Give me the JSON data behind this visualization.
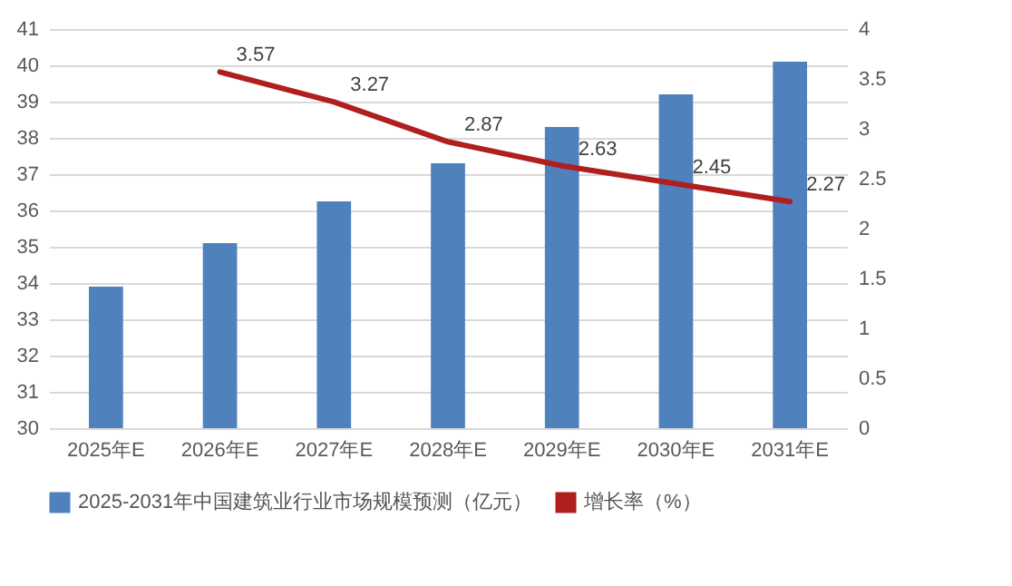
{
  "chart_data": {
    "type": "bar",
    "categories": [
      "2025年E",
      "2026年E",
      "2027年E",
      "2028年E",
      "2029年E",
      "2030年E",
      "2031年E"
    ],
    "series": [
      {
        "name": "2025-2031年中国建筑业行业市场规模预测（亿元）",
        "color": "#4f81bd",
        "values": [
          33.9,
          35.1,
          36.25,
          37.3,
          38.3,
          39.2,
          40.1
        ]
      },
      {
        "name": "增长率（%）",
        "type": "line",
        "axis": "y2",
        "color": "#b01e1e",
        "values": [
          null,
          3.57,
          3.27,
          2.87,
          2.63,
          2.45,
          2.27
        ],
        "data_labels": true
      }
    ],
    "ylim": [
      30,
      41
    ],
    "yticks": [
      30,
      31,
      32,
      33,
      34,
      35,
      36,
      37,
      38,
      39,
      40,
      41
    ],
    "y2lim": [
      0,
      4
    ],
    "y2ticks": [
      0,
      0.5,
      1,
      1.5,
      2,
      2.5,
      3,
      3.5,
      4
    ],
    "grid": "y",
    "legend": "bottom"
  }
}
